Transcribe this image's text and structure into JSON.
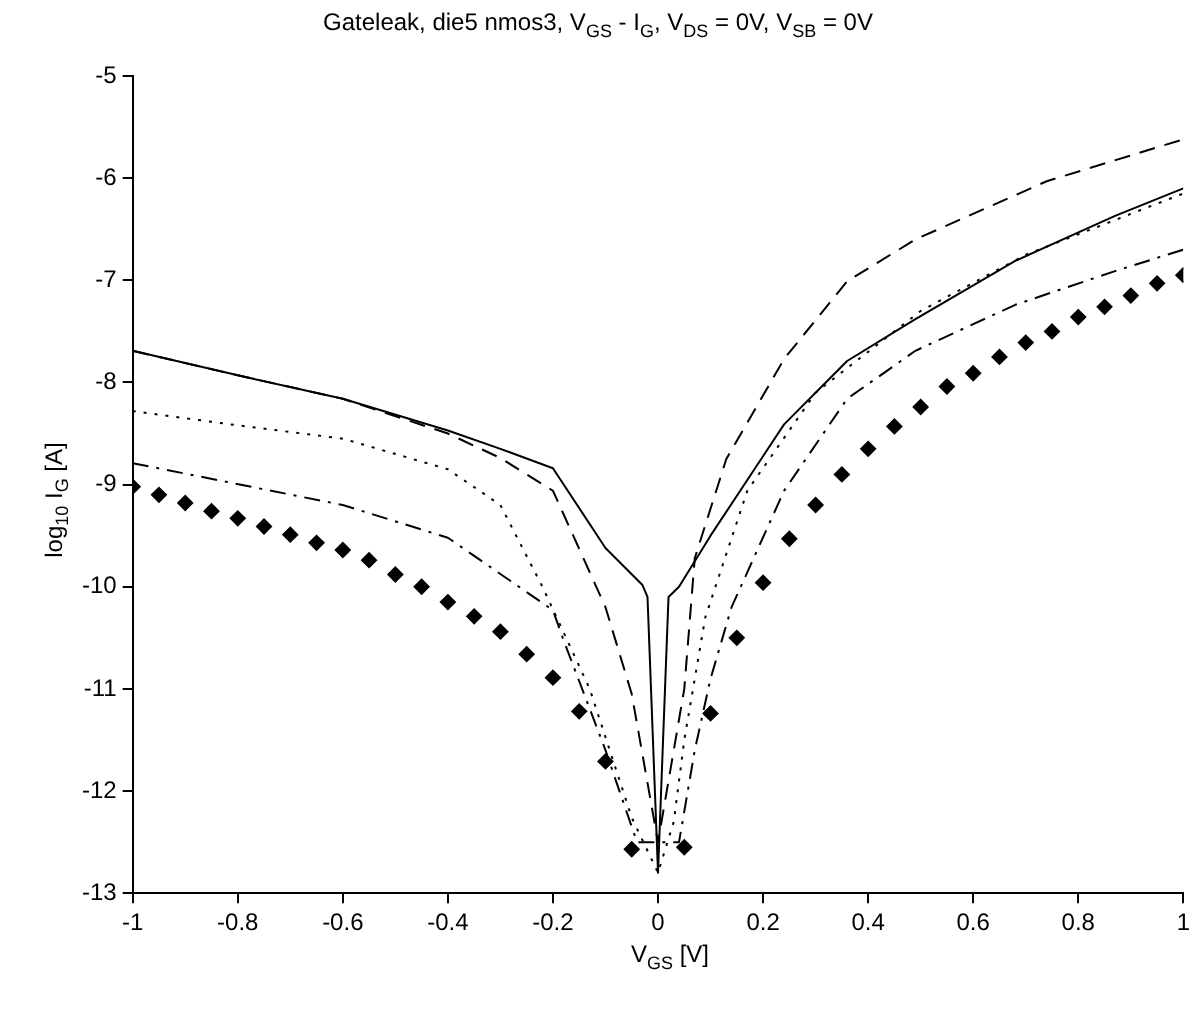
{
  "chart_data": {
    "type": "line",
    "title": "Gateleak, die5 nmos3, V$_{GS}$ - I$_{G}$, V$_{DS}$ = 0V, V$_{SB}$ = 0V",
    "xlabel": "V$_{GS}$ [V]",
    "ylabel": "log$_{10}$ I$_{G}$ [A]",
    "xlim": [
      -1,
      1
    ],
    "xticks": [
      -1,
      -0.8,
      -0.6,
      -0.4,
      -0.2,
      0,
      0.2,
      0.4,
      0.6,
      0.8,
      1
    ],
    "ylim": [
      -13,
      -5
    ],
    "yticks": [
      -13,
      -12,
      -11,
      -10,
      -9,
      -8,
      -7,
      -6,
      -5
    ],
    "grid": false,
    "legend": false,
    "series": [
      {
        "color": "#000000",
        "line_style": "solid",
        "marker": "none",
        "x": [
          -1,
          -0.8,
          -0.6,
          -0.4,
          -0.3,
          -0.2,
          -0.1,
          -0.03,
          -0.02,
          0,
          0.02,
          0.04,
          0.1,
          0.24,
          0.36,
          0.49,
          0.68,
          0.87,
          1
        ],
        "values": [
          -7.69,
          -7.93,
          -8.16,
          -8.47,
          -8.65,
          -8.84,
          -9.62,
          -9.98,
          -10.1,
          -12.8,
          -10.1,
          -10.0,
          -9.5,
          -8.41,
          -7.79,
          -7.38,
          -6.81,
          -6.37,
          -6.1
        ]
      },
      {
        "color": "#000000",
        "line_style": "dashed",
        "marker": "none",
        "x": [
          -1,
          -0.8,
          -0.6,
          -0.4,
          -0.3,
          -0.2,
          -0.1,
          -0.05,
          0,
          0.05,
          0.07,
          0.13,
          0.24,
          0.36,
          0.49,
          0.74,
          1
        ],
        "values": [
          -7.69,
          -7.93,
          -8.16,
          -8.5,
          -8.74,
          -9.06,
          -10.2,
          -11.05,
          -12.5,
          -11.0,
          -9.72,
          -8.75,
          -7.77,
          -7.01,
          -6.6,
          -6.03,
          -5.62
        ]
      },
      {
        "color": "#000000",
        "line_style": "dotted",
        "marker": "none",
        "x": [
          -1,
          -0.8,
          -0.6,
          -0.4,
          -0.3,
          -0.22,
          -0.13,
          -0.05,
          0,
          0.03,
          0.05,
          0.09,
          0.17,
          0.3,
          0.5,
          0.7,
          1
        ],
        "values": [
          -8.28,
          -8.42,
          -8.55,
          -8.85,
          -9.2,
          -10.0,
          -11.0,
          -12.26,
          -12.8,
          -12.3,
          -11.5,
          -10.3,
          -9.06,
          -8.1,
          -7.3,
          -6.75,
          -6.15
        ]
      },
      {
        "color": "#000000",
        "line_style": "dashdot",
        "marker": "none",
        "x": [
          -1,
          -0.6,
          -0.4,
          -0.2,
          -0.18,
          -0.1,
          -0.06,
          -0.04,
          0.04,
          0.07,
          0.1,
          0.14,
          0.24,
          0.36,
          0.49,
          0.68,
          0.87,
          1
        ],
        "values": [
          -8.79,
          -9.2,
          -9.52,
          -10.23,
          -10.52,
          -11.6,
          -12.2,
          -12.5,
          -12.5,
          -11.6,
          -10.9,
          -10.2,
          -9.06,
          -8.16,
          -7.69,
          -7.24,
          -6.91,
          -6.7
        ]
      },
      {
        "type": "scatter",
        "color": "#000000",
        "line_style": "none",
        "marker": "diamond",
        "x": [
          -1,
          -0.95,
          -0.9,
          -0.85,
          -0.8,
          -0.75,
          -0.7,
          -0.65,
          -0.6,
          -0.55,
          -0.5,
          -0.45,
          -0.4,
          -0.35,
          -0.3,
          -0.25,
          -0.2,
          -0.15,
          -0.1,
          -0.05,
          0.05,
          0.1,
          0.15,
          0.2,
          0.25,
          0.3,
          0.35,
          0.4,
          0.45,
          0.5,
          0.55,
          0.6,
          0.65,
          0.7,
          0.75,
          0.8,
          0.85,
          0.9,
          0.95,
          1
        ],
        "values": [
          -9.02,
          -9.1,
          -9.18,
          -9.26,
          -9.33,
          -9.41,
          -9.49,
          -9.57,
          -9.64,
          -9.74,
          -9.88,
          -10.0,
          -10.15,
          -10.29,
          -10.44,
          -10.66,
          -10.89,
          -11.22,
          -11.71,
          -12.57,
          -12.55,
          -11.24,
          -10.5,
          -9.96,
          -9.53,
          -9.2,
          -8.9,
          -8.65,
          -8.43,
          -8.24,
          -8.04,
          -7.91,
          -7.75,
          -7.61,
          -7.5,
          -7.36,
          -7.26,
          -7.15,
          -7.03,
          -6.95
        ]
      }
    ]
  }
}
